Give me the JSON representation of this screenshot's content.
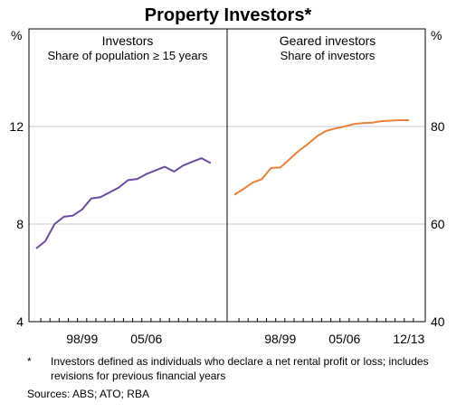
{
  "chart_data": {
    "type": "line",
    "title": "Property Investors*",
    "left_unit": "%",
    "right_unit": "%",
    "left_ylim": [
      4,
      16
    ],
    "right_ylim": [
      40,
      100
    ],
    "left_yticks": [
      4,
      8,
      12
    ],
    "right_yticks": [
      40,
      60,
      80
    ],
    "grid": true,
    "x_start": 1994,
    "x_end": 2014,
    "panels": [
      {
        "title": "Investors",
        "subtitle": "Share of population ≥ 15 years",
        "axis": "left",
        "xticks": [
          {
            "label": "98/99",
            "x": 1999
          },
          {
            "label": "05/06",
            "x": 2006
          }
        ],
        "series": [
          {
            "color": "#6a4c9c",
            "x": [
              1994,
              1995,
              1996,
              1997,
              1998,
              1999,
              2000,
              2001,
              2002,
              2003,
              2004,
              2005,
              2006,
              2007,
              2008,
              2009,
              2010,
              2011,
              2012,
              2013
            ],
            "values": [
              7.0,
              7.3,
              8.0,
              8.3,
              8.35,
              8.6,
              9.05,
              9.1,
              9.3,
              9.5,
              9.8,
              9.85,
              10.05,
              10.2,
              10.35,
              10.15,
              10.4,
              10.55,
              10.7,
              10.5
            ]
          }
        ]
      },
      {
        "title": "Geared investors",
        "subtitle": "Share of investors",
        "axis": "right",
        "xticks": [
          {
            "label": "98/99",
            "x": 1999
          },
          {
            "label": "05/06",
            "x": 2006
          },
          {
            "label": "12/13",
            "x": 2013
          }
        ],
        "series": [
          {
            "color": "#e8813a",
            "x": [
              1994,
              1995,
              1996,
              1997,
              1998,
              1999,
              2000,
              2001,
              2002,
              2003,
              2004,
              2005,
              2006,
              2007,
              2008,
              2009,
              2010,
              2011,
              2012,
              2013
            ],
            "values": [
              66.0,
              67.2,
              68.5,
              69.2,
              71.5,
              71.6,
              73.3,
              75.0,
              76.4,
              78.0,
              79.1,
              79.6,
              80.0,
              80.5,
              80.7,
              80.8,
              81.1,
              81.2,
              81.3,
              81.3
            ]
          }
        ]
      }
    ]
  },
  "footnote": {
    "marker": "*",
    "text": "Investors defined as individuals who declare a net rental profit or loss; includes revisions for previous financial years"
  },
  "sources": "Sources:  ABS; ATO; RBA"
}
